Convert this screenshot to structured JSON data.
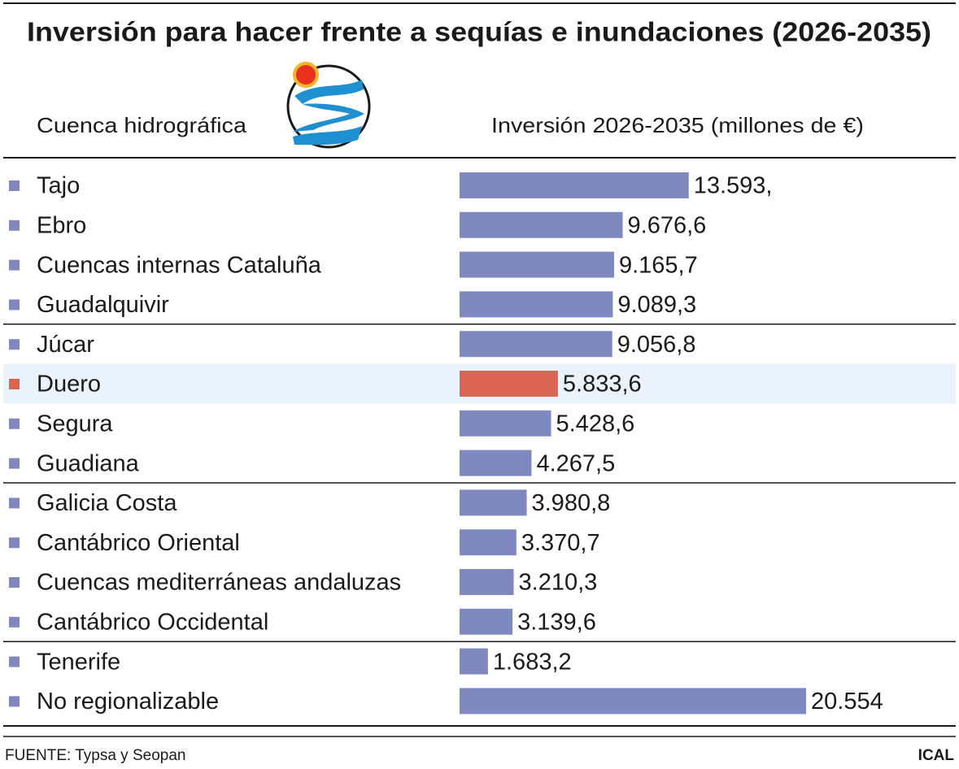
{
  "chart_data": {
    "type": "hbar",
    "title": "Inversión para hacer frente a sequías e inundaciones (2026-2035)",
    "category_header": "Cuenca hidrográfica",
    "value_header": "Inversión 2026-2035 (millones de €)",
    "categories": [
      "Tajo",
      "Ebro",
      "Cuencas internas Cataluña",
      "Guadalquivir",
      "Júcar",
      "Duero",
      "Segura",
      "Guadiana",
      "Galicia Costa",
      "Cantábrico Oriental",
      "Cuencas mediterráneas andaluzas",
      "Cantábrico Occidental",
      "Tenerife",
      "No regionalizable"
    ],
    "values": [
      13593,
      9676.6,
      9165.7,
      9089.3,
      9056.8,
      5833.6,
      5428.6,
      4267.5,
      3980.8,
      3370.7,
      3210.3,
      3139.6,
      1683.2,
      20554
    ],
    "value_labels": [
      "13.593,",
      "9.676,6",
      "9.165,7",
      "9.089,3",
      "9.056,8",
      "5.833,6",
      "5.428,6",
      "4.267,5",
      "3.980,8",
      "3.370,7",
      "3.210,3",
      "3.139,6",
      "1.683,2",
      "20.554"
    ],
    "colors": [
      "#7f89c0",
      "#7f89c0",
      "#7f89c0",
      "#7f89c0",
      "#7f89c0",
      "#dc6452",
      "#7f89c0",
      "#7f89c0",
      "#7f89c0",
      "#7f89c0",
      "#7f89c0",
      "#7f89c0",
      "#7f89c0",
      "#7f89c0"
    ],
    "source": "FUENTE: Typsa y Seopan",
    "credit": "ICAL"
  }
}
